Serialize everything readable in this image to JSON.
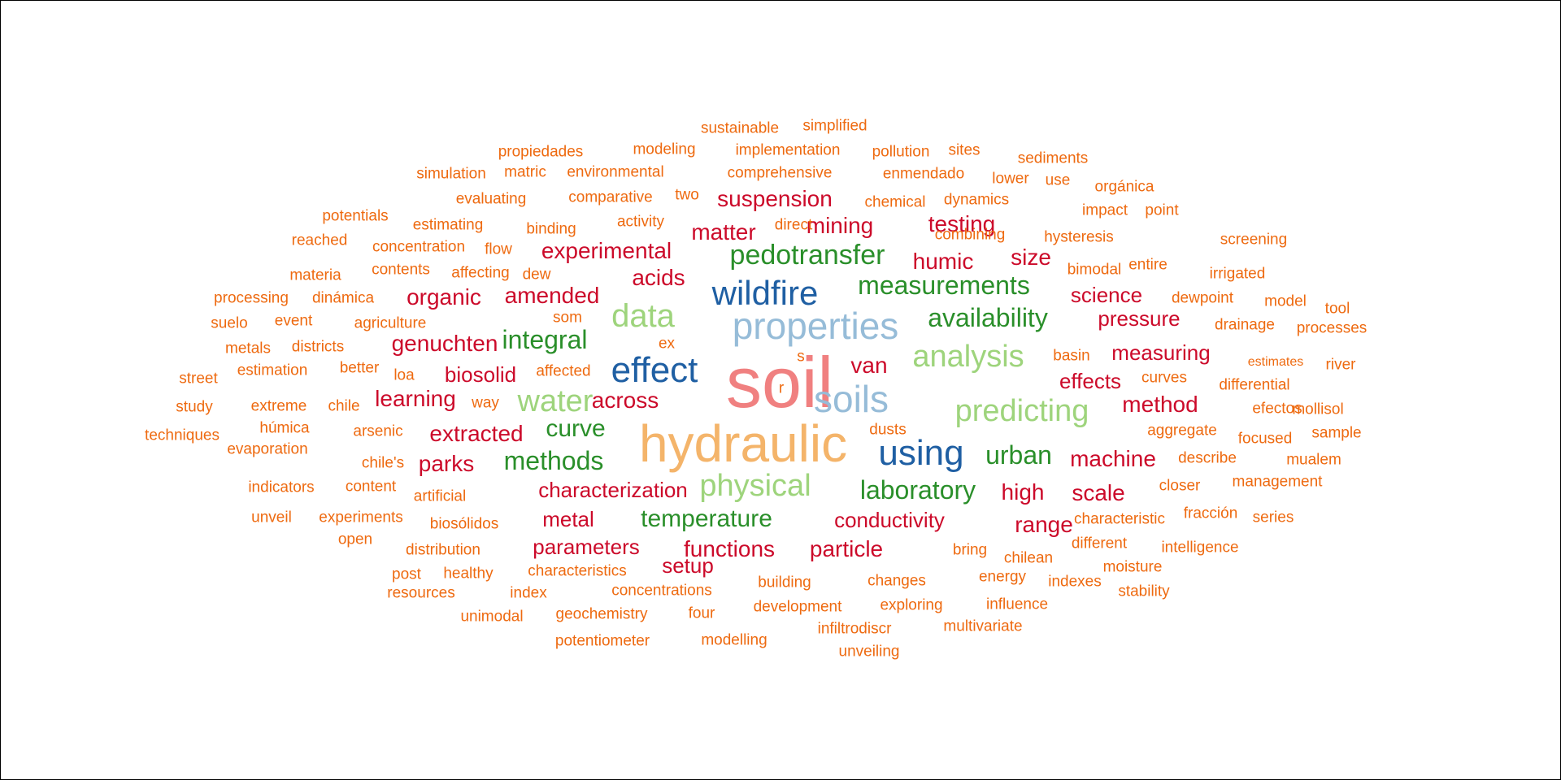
{
  "palette": {
    "pink": "#f08080",
    "gold": "#f4b46a",
    "lightblue": "#96bcd8",
    "blue": "#1f5fa3",
    "lightgreen": "#9ed47c",
    "green": "#2a8f2a",
    "red": "#cc0a2a",
    "orange": "#ee6a10"
  },
  "words": [
    {
      "text": "soil",
      "color": "pink"
    },
    {
      "text": "hydraulic",
      "color": "gold"
    },
    {
      "text": "properties",
      "color": "lightblue"
    },
    {
      "text": "soils",
      "color": "lightblue"
    },
    {
      "text": "wildfire",
      "color": "blue"
    },
    {
      "text": "effect",
      "color": "blue"
    },
    {
      "text": "using",
      "color": "blue"
    },
    {
      "text": "data",
      "color": "lightgreen"
    },
    {
      "text": "analysis",
      "color": "lightgreen"
    },
    {
      "text": "predicting",
      "color": "lightgreen"
    },
    {
      "text": "water",
      "color": "lightgreen"
    },
    {
      "text": "physical",
      "color": "lightgreen"
    },
    {
      "text": "pedotransfer",
      "color": "green"
    },
    {
      "text": "measurements",
      "color": "green"
    },
    {
      "text": "availability",
      "color": "green"
    },
    {
      "text": "integral",
      "color": "green"
    },
    {
      "text": "curve",
      "color": "green"
    },
    {
      "text": "methods",
      "color": "green"
    },
    {
      "text": "urban",
      "color": "green"
    },
    {
      "text": "laboratory",
      "color": "green"
    },
    {
      "text": "temperature",
      "color": "green"
    },
    {
      "text": "suspension",
      "color": "red"
    },
    {
      "text": "mining",
      "color": "red"
    },
    {
      "text": "testing",
      "color": "red"
    },
    {
      "text": "matter",
      "color": "red"
    },
    {
      "text": "experimental",
      "color": "red"
    },
    {
      "text": "humic",
      "color": "red"
    },
    {
      "text": "size",
      "color": "red"
    },
    {
      "text": "acids",
      "color": "red"
    },
    {
      "text": "organic",
      "color": "red"
    },
    {
      "text": "amended",
      "color": "red"
    },
    {
      "text": "science",
      "color": "red"
    },
    {
      "text": "pressure",
      "color": "red"
    },
    {
      "text": "genuchten",
      "color": "red"
    },
    {
      "text": "van",
      "color": "red"
    },
    {
      "text": "measuring",
      "color": "red"
    },
    {
      "text": "biosolid",
      "color": "red"
    },
    {
      "text": "effects",
      "color": "red"
    },
    {
      "text": "learning",
      "color": "red"
    },
    {
      "text": "across",
      "color": "red"
    },
    {
      "text": "method",
      "color": "red"
    },
    {
      "text": "extracted",
      "color": "red"
    },
    {
      "text": "parks",
      "color": "red"
    },
    {
      "text": "machine",
      "color": "red"
    },
    {
      "text": "characterization",
      "color": "red"
    },
    {
      "text": "high",
      "color": "red"
    },
    {
      "text": "scale",
      "color": "red"
    },
    {
      "text": "metal",
      "color": "red"
    },
    {
      "text": "conductivity",
      "color": "red"
    },
    {
      "text": "range",
      "color": "red"
    },
    {
      "text": "parameters",
      "color": "red"
    },
    {
      "text": "functions",
      "color": "red"
    },
    {
      "text": "particle",
      "color": "red"
    },
    {
      "text": "setup",
      "color": "red"
    },
    {
      "text": "sustainable",
      "color": "orange"
    },
    {
      "text": "simplified",
      "color": "orange"
    },
    {
      "text": "propiedades",
      "color": "orange"
    },
    {
      "text": "modeling",
      "color": "orange"
    },
    {
      "text": "implementation",
      "color": "orange"
    },
    {
      "text": "pollution",
      "color": "orange"
    },
    {
      "text": "sites",
      "color": "orange"
    },
    {
      "text": "sediments",
      "color": "orange"
    },
    {
      "text": "simulation",
      "color": "orange"
    },
    {
      "text": "matric",
      "color": "orange"
    },
    {
      "text": "environmental",
      "color": "orange"
    },
    {
      "text": "comprehensive",
      "color": "orange"
    },
    {
      "text": "enmendado",
      "color": "orange"
    },
    {
      "text": "lower",
      "color": "orange"
    },
    {
      "text": "use",
      "color": "orange"
    },
    {
      "text": "orgánica",
      "color": "orange"
    },
    {
      "text": "evaluating",
      "color": "orange"
    },
    {
      "text": "comparative",
      "color": "orange"
    },
    {
      "text": "two",
      "color": "orange"
    },
    {
      "text": "chemical",
      "color": "orange"
    },
    {
      "text": "dynamics",
      "color": "orange"
    },
    {
      "text": "impact",
      "color": "orange"
    },
    {
      "text": "point",
      "color": "orange"
    },
    {
      "text": "potentials",
      "color": "orange"
    },
    {
      "text": "estimating",
      "color": "orange"
    },
    {
      "text": "binding",
      "color": "orange"
    },
    {
      "text": "activity",
      "color": "orange"
    },
    {
      "text": "direct",
      "color": "orange"
    },
    {
      "text": "combining",
      "color": "orange"
    },
    {
      "text": "hysteresis",
      "color": "orange"
    },
    {
      "text": "screening",
      "color": "orange"
    },
    {
      "text": "reached",
      "color": "orange"
    },
    {
      "text": "concentration",
      "color": "orange"
    },
    {
      "text": "flow",
      "color": "orange"
    },
    {
      "text": "entire",
      "color": "orange"
    },
    {
      "text": "materia",
      "color": "orange"
    },
    {
      "text": "contents",
      "color": "orange"
    },
    {
      "text": "affecting",
      "color": "orange"
    },
    {
      "text": "dew",
      "color": "orange"
    },
    {
      "text": "bimodal",
      "color": "orange"
    },
    {
      "text": "irrigated",
      "color": "orange"
    },
    {
      "text": "processing",
      "color": "orange"
    },
    {
      "text": "dinámica",
      "color": "orange"
    },
    {
      "text": "dewpoint",
      "color": "orange"
    },
    {
      "text": "model",
      "color": "orange"
    },
    {
      "text": "tool",
      "color": "orange"
    },
    {
      "text": "suelo",
      "color": "orange"
    },
    {
      "text": "event",
      "color": "orange"
    },
    {
      "text": "agriculture",
      "color": "orange"
    },
    {
      "text": "som",
      "color": "orange"
    },
    {
      "text": "drainage",
      "color": "orange"
    },
    {
      "text": "processes",
      "color": "orange"
    },
    {
      "text": "metals",
      "color": "orange"
    },
    {
      "text": "districts",
      "color": "orange"
    },
    {
      "text": "ex",
      "color": "orange"
    },
    {
      "text": "s",
      "color": "orange"
    },
    {
      "text": "basin",
      "color": "orange"
    },
    {
      "text": "estimates",
      "color": "orange"
    },
    {
      "text": "river",
      "color": "orange"
    },
    {
      "text": "street",
      "color": "orange"
    },
    {
      "text": "estimation",
      "color": "orange"
    },
    {
      "text": "better",
      "color": "orange"
    },
    {
      "text": "loa",
      "color": "orange"
    },
    {
      "text": "affected",
      "color": "orange"
    },
    {
      "text": "r",
      "color": "orange"
    },
    {
      "text": "curves",
      "color": "orange"
    },
    {
      "text": "differential",
      "color": "orange"
    },
    {
      "text": "study",
      "color": "orange"
    },
    {
      "text": "extreme",
      "color": "orange"
    },
    {
      "text": "chile",
      "color": "orange"
    },
    {
      "text": "way",
      "color": "orange"
    },
    {
      "text": "efectos",
      "color": "orange"
    },
    {
      "text": "mollisol",
      "color": "orange"
    },
    {
      "text": "techniques",
      "color": "orange"
    },
    {
      "text": "húmica",
      "color": "orange"
    },
    {
      "text": "arsenic",
      "color": "orange"
    },
    {
      "text": "dusts",
      "color": "orange"
    },
    {
      "text": "aggregate",
      "color": "orange"
    },
    {
      "text": "focused",
      "color": "orange"
    },
    {
      "text": "sample",
      "color": "orange"
    },
    {
      "text": "evaporation",
      "color": "orange"
    },
    {
      "text": "chile's",
      "color": "orange"
    },
    {
      "text": "describe",
      "color": "orange"
    },
    {
      "text": "mualem",
      "color": "orange"
    },
    {
      "text": "indicators",
      "color": "orange"
    },
    {
      "text": "content",
      "color": "orange"
    },
    {
      "text": "artificial",
      "color": "orange"
    },
    {
      "text": "closer",
      "color": "orange"
    },
    {
      "text": "management",
      "color": "orange"
    },
    {
      "text": "unveil",
      "color": "orange"
    },
    {
      "text": "experiments",
      "color": "orange"
    },
    {
      "text": "biosólidos",
      "color": "orange"
    },
    {
      "text": "characteristic",
      "color": "orange"
    },
    {
      "text": "fracción",
      "color": "orange"
    },
    {
      "text": "series",
      "color": "orange"
    },
    {
      "text": "open",
      "color": "orange"
    },
    {
      "text": "different",
      "color": "orange"
    },
    {
      "text": "intelligence",
      "color": "orange"
    },
    {
      "text": "distribution",
      "color": "orange"
    },
    {
      "text": "bring",
      "color": "orange"
    },
    {
      "text": "chilean",
      "color": "orange"
    },
    {
      "text": "moisture",
      "color": "orange"
    },
    {
      "text": "post",
      "color": "orange"
    },
    {
      "text": "healthy",
      "color": "orange"
    },
    {
      "text": "characteristics",
      "color": "orange"
    },
    {
      "text": "building",
      "color": "orange"
    },
    {
      "text": "changes",
      "color": "orange"
    },
    {
      "text": "energy",
      "color": "orange"
    },
    {
      "text": "indexes",
      "color": "orange"
    },
    {
      "text": "resources",
      "color": "orange"
    },
    {
      "text": "index",
      "color": "orange"
    },
    {
      "text": "concentrations",
      "color": "orange"
    },
    {
      "text": "stability",
      "color": "orange"
    },
    {
      "text": "development",
      "color": "orange"
    },
    {
      "text": "exploring",
      "color": "orange"
    },
    {
      "text": "influence",
      "color": "orange"
    },
    {
      "text": "unimodal",
      "color": "orange"
    },
    {
      "text": "geochemistry",
      "color": "orange"
    },
    {
      "text": "four",
      "color": "orange"
    },
    {
      "text": "infiltrodiscr",
      "color": "orange"
    },
    {
      "text": "multivariate",
      "color": "orange"
    },
    {
      "text": "potentiometer",
      "color": "orange"
    },
    {
      "text": "modelling",
      "color": "orange"
    },
    {
      "text": "unveiling",
      "color": "orange"
    }
  ]
}
